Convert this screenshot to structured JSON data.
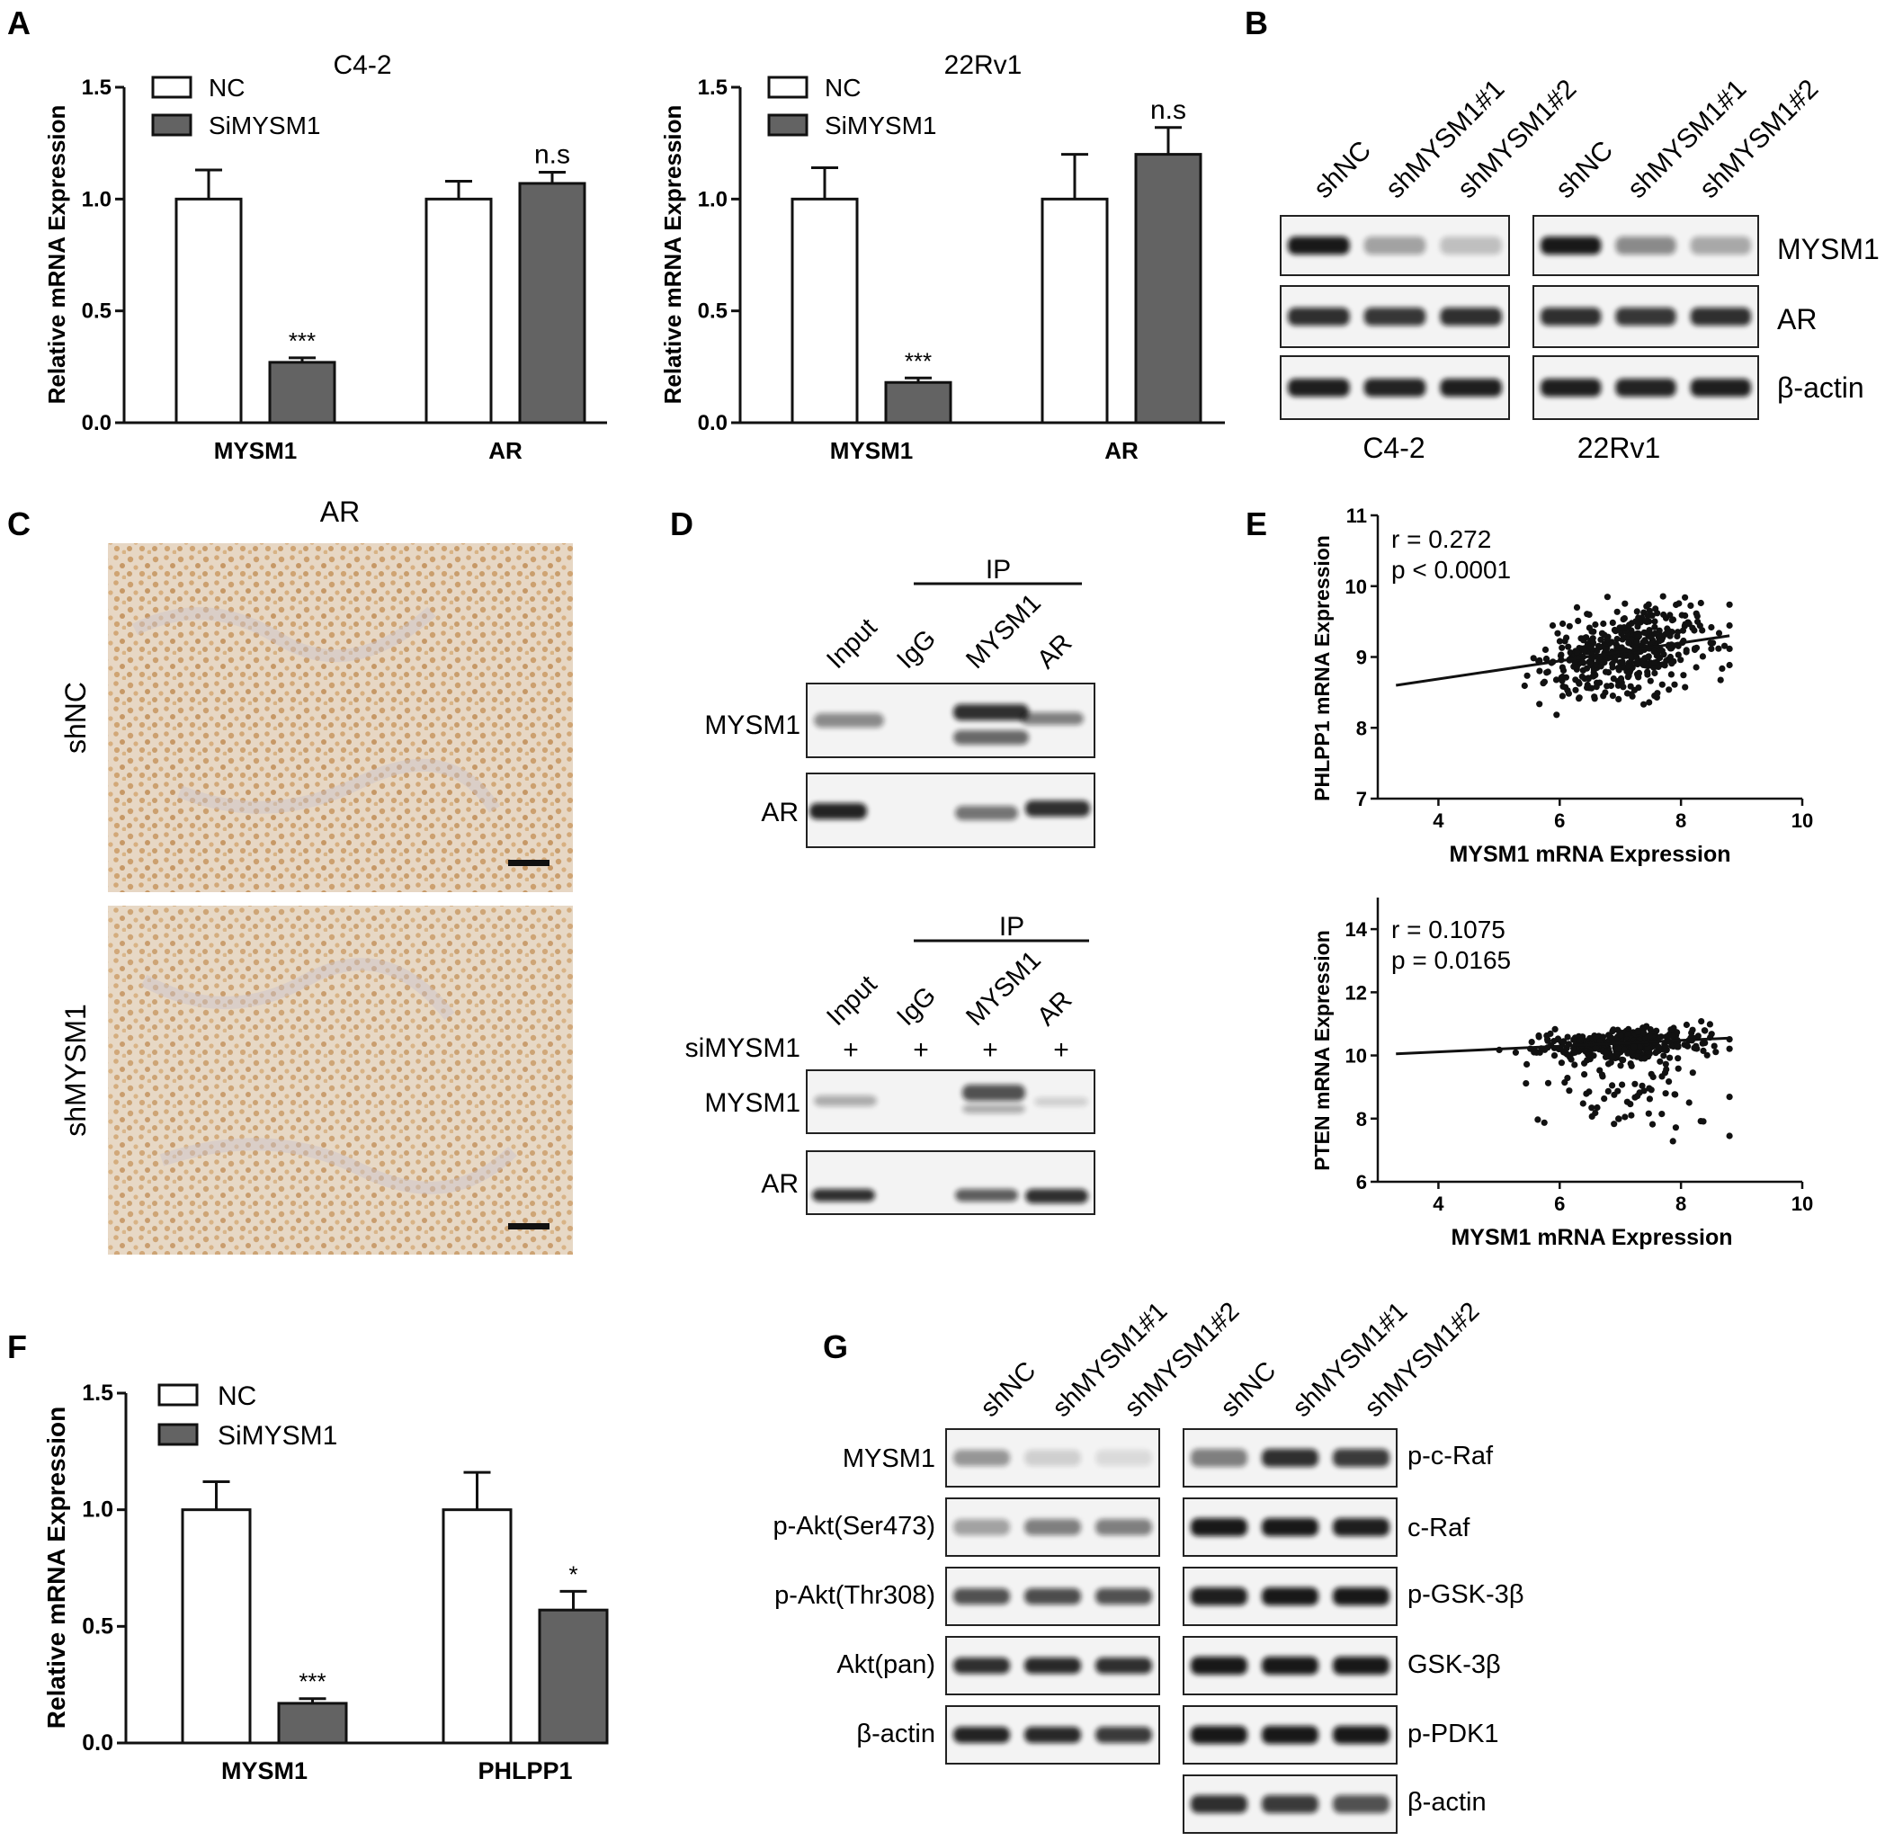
{
  "panel_letters": [
    "A",
    "B",
    "C",
    "D",
    "E",
    "F",
    "G"
  ],
  "panel_a": {
    "ylabel": "Relative mRNA Expression",
    "yticks": [
      "0.0",
      "0.5",
      "1.0",
      "1.5"
    ],
    "legend": [
      "NC",
      "SiMYSM1"
    ],
    "charts": [
      {
        "title": "C4-2",
        "categories": [
          "MYSM1",
          "AR"
        ],
        "sig": [
          "***",
          "n.s"
        ]
      },
      {
        "title": "22Rv1",
        "categories": [
          "MYSM1",
          "AR"
        ],
        "sig": [
          "***",
          "n.s"
        ]
      }
    ]
  },
  "panel_b": {
    "lanes": [
      "shNC",
      "shMYSM1#1",
      "shMYSM1#2",
      "shNC",
      "shMYSM1#1",
      "shMYSM1#2"
    ],
    "rows": [
      "MYSM1",
      "AR",
      "β-actin"
    ],
    "cells": [
      "C4-2",
      "22Rv1"
    ]
  },
  "panel_c": {
    "title": "AR",
    "rows": [
      "shNC",
      "shMYSM1"
    ]
  },
  "panel_d": {
    "ip_label": "IP",
    "lanes": [
      "Input",
      "IgG",
      "MYSM1",
      "AR"
    ],
    "top_rows": [
      "MYSM1",
      "AR"
    ],
    "bottom_treatment_label": "siMYSM1",
    "bottom_treatment": [
      "+",
      "+",
      "+",
      "+"
    ],
    "bottom_rows": [
      "MYSM1",
      "AR"
    ]
  },
  "panel_e": {
    "plots": [
      {
        "ylabel": "PHLPP1 mRNA Expression",
        "xlabel": "MYSM1 mRNA Expression",
        "r": "r = 0.272",
        "p": "p < 0.0001",
        "yticks": [
          "7",
          "8",
          "9",
          "10",
          "11"
        ],
        "xticks": [
          "4",
          "6",
          "8",
          "10"
        ]
      },
      {
        "ylabel": "PTEN mRNA Expression",
        "xlabel": "MYSM1 mRNA Expression",
        "r": "r = 0.1075",
        "p": "p = 0.0165",
        "yticks": [
          "6",
          "8",
          "10",
          "12",
          "14"
        ],
        "xticks": [
          "4",
          "6",
          "8",
          "10"
        ]
      }
    ]
  },
  "panel_f": {
    "ylabel": "Relative mRNA Expression",
    "yticks": [
      "0.0",
      "0.5",
      "1.0",
      "1.5"
    ],
    "legend": [
      "NC",
      "SiMYSM1"
    ],
    "categories": [
      "MYSM1",
      "PHLPP1"
    ],
    "sig": [
      "***",
      "*"
    ]
  },
  "panel_g": {
    "lanes": [
      "shNC",
      "shMYSM1#1",
      "shMYSM1#2",
      "shNC",
      "shMYSM1#1",
      "shMYSM1#2"
    ],
    "left_rows": [
      "MYSM1",
      "p-Akt(Ser473)",
      "p-Akt(Thr308)",
      "Akt(pan)",
      "β-actin"
    ],
    "right_rows": [
      "p-c-Raf",
      "c-Raf",
      "p-GSK-3β",
      "GSK-3β",
      "p-PDK1",
      "β-actin"
    ]
  },
  "chart_data": [
    {
      "type": "bar",
      "title": "C4-2",
      "categories": [
        "MYSM1",
        "AR"
      ],
      "series": [
        {
          "name": "NC",
          "values": [
            1.0,
            1.0
          ],
          "errors": [
            0.13,
            0.08
          ]
        },
        {
          "name": "SiMYSM1",
          "values": [
            0.27,
            1.07
          ],
          "errors": [
            0.02,
            0.05
          ]
        }
      ],
      "ylabel": "Relative mRNA Expression",
      "ylim": [
        0,
        1.5
      ]
    },
    {
      "type": "bar",
      "title": "22Rv1",
      "categories": [
        "MYSM1",
        "AR"
      ],
      "series": [
        {
          "name": "NC",
          "values": [
            1.0,
            1.0
          ],
          "errors": [
            0.14,
            0.2
          ]
        },
        {
          "name": "SiMYSM1",
          "values": [
            0.18,
            1.2
          ],
          "errors": [
            0.02,
            0.12
          ]
        }
      ],
      "ylabel": "Relative mRNA Expression",
      "ylim": [
        0,
        1.5
      ]
    },
    {
      "type": "scatter",
      "xlabel": "MYSM1 mRNA Expression",
      "ylabel": "PHLPP1 mRNA Expression",
      "xlim": [
        3,
        10
      ],
      "ylim": [
        7,
        11
      ],
      "r": 0.272,
      "p": "< 0.0001",
      "fit_line": [
        [
          3.3,
          8.6
        ],
        [
          8.8,
          9.3
        ]
      ]
    },
    {
      "type": "scatter",
      "xlabel": "MYSM1 mRNA Expression",
      "ylabel": "PTEN mRNA Expression",
      "xlim": [
        3,
        10
      ],
      "ylim": [
        6,
        15
      ],
      "r": 0.1075,
      "p": "0.0165",
      "fit_line": [
        [
          3.3,
          10.05
        ],
        [
          8.8,
          10.55
        ]
      ]
    },
    {
      "type": "bar",
      "categories": [
        "MYSM1",
        "PHLPP1"
      ],
      "series": [
        {
          "name": "NC",
          "values": [
            1.0,
            1.0
          ],
          "errors": [
            0.12,
            0.16
          ]
        },
        {
          "name": "SiMYSM1",
          "values": [
            0.17,
            0.57
          ],
          "errors": [
            0.02,
            0.08
          ]
        }
      ],
      "ylabel": "Relative mRNA Expression",
      "ylim": [
        0,
        1.5
      ]
    }
  ]
}
